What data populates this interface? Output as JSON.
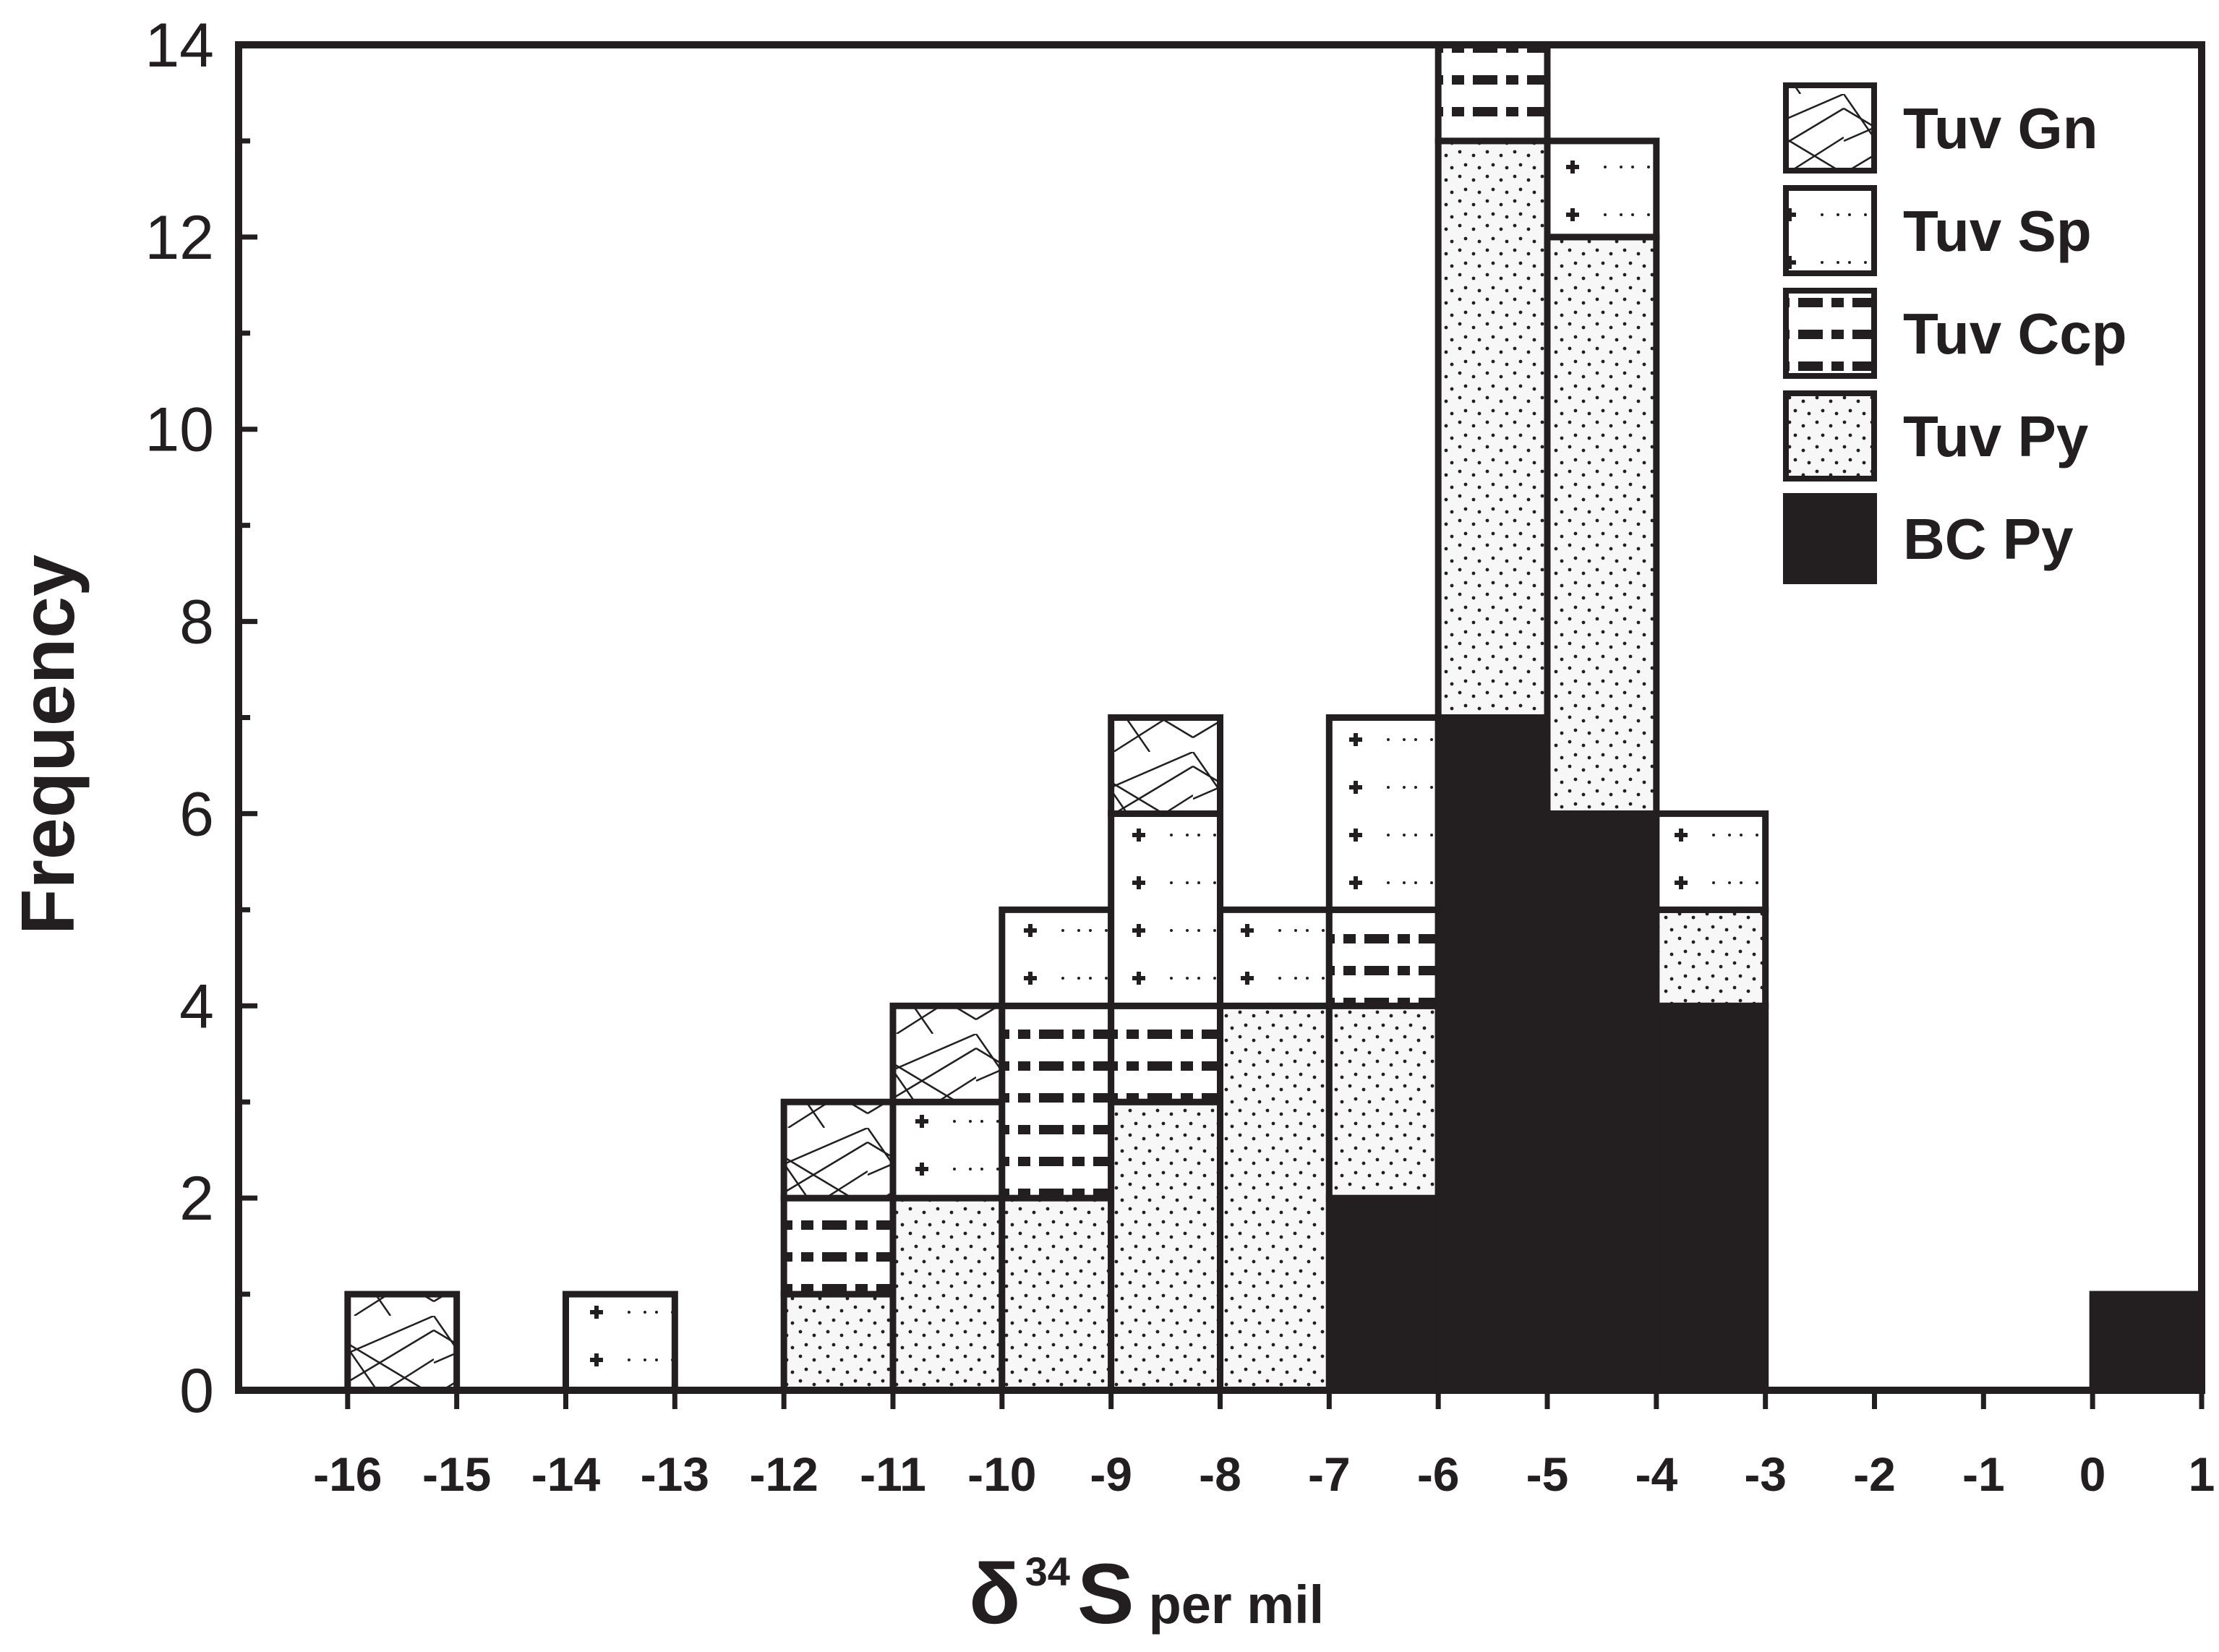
{
  "chart_data": {
    "type": "bar",
    "stacked": true,
    "bin_width": 1,
    "x_bins_left_edge": [
      -16,
      -14,
      -12,
      -11,
      -10,
      -9,
      -8,
      -7,
      -6,
      -5,
      -4,
      0
    ],
    "series": [
      {
        "name": "BC Py",
        "fill": "solid-black",
        "values": [
          0,
          0,
          0,
          0,
          0,
          0,
          0,
          2,
          7,
          6,
          4,
          1
        ]
      },
      {
        "name": "Tuv Py",
        "fill": "dots",
        "values": [
          0,
          0,
          1,
          2,
          2,
          3,
          4,
          2,
          6,
          6,
          1,
          0
        ]
      },
      {
        "name": "Tuv Ccp",
        "fill": "dashes",
        "values": [
          0,
          0,
          1,
          0,
          2,
          1,
          0,
          1,
          1,
          0,
          0,
          0
        ]
      },
      {
        "name": "Tuv Sp",
        "fill": "plus",
        "values": [
          0,
          1,
          0,
          1,
          1,
          2,
          1,
          2,
          0,
          1,
          1,
          0
        ]
      },
      {
        "name": "Tuv Gn",
        "fill": "crosshatch",
        "values": [
          1,
          0,
          1,
          1,
          0,
          1,
          0,
          0,
          0,
          0,
          0,
          0
        ]
      }
    ],
    "legend_order": [
      "Tuv Gn",
      "Tuv Sp",
      "Tuv Ccp",
      "Tuv Py",
      "BC Py"
    ],
    "legend_position": "top-right",
    "ylabel": "Frequency",
    "xlabel": {
      "symbol": "δ",
      "superscript": "34",
      "element": "S",
      "unit": "per mil"
    },
    "xlim": [
      -17,
      1
    ],
    "ylim": [
      0,
      14
    ],
    "x_ticks": [
      -16,
      -15,
      -14,
      -13,
      -12,
      -11,
      -10,
      -9,
      -8,
      -7,
      -6,
      -5,
      -4,
      -3,
      -2,
      -1,
      0,
      1
    ],
    "x_tick_labels": [
      "-16",
      "-15",
      "-14",
      "-13",
      "-12",
      "-11",
      "-10",
      "-9",
      "-8",
      "-7",
      "-6",
      "-5",
      "-4",
      "-3",
      "-2",
      "-1",
      "0",
      "1"
    ],
    "y_ticks": [
      0,
      2,
      4,
      6,
      8,
      10,
      12,
      14
    ],
    "y_tick_labels": [
      "0",
      "2",
      "4",
      "6",
      "8",
      "10",
      "12",
      "14"
    ],
    "grid": false,
    "colors": {
      "ink": "#231f20",
      "background": "#ffffff"
    }
  }
}
